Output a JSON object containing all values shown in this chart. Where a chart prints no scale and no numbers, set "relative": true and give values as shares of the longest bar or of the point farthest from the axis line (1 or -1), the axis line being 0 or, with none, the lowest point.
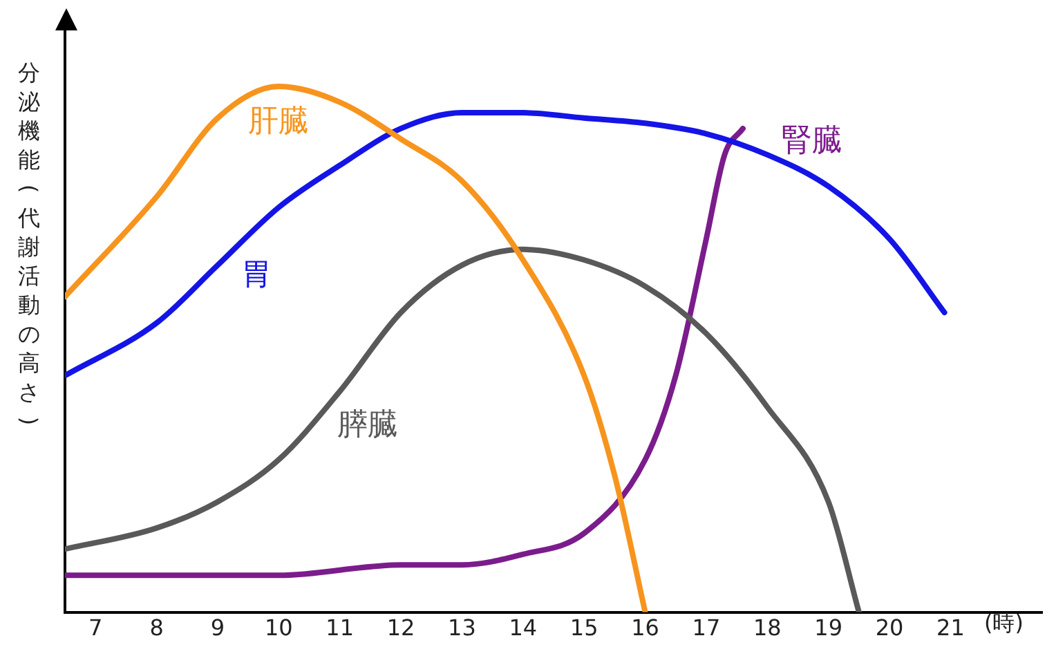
{
  "chart_data": {
    "type": "line",
    "relative": true,
    "ylabel": "分泌機能(代謝活動の高さ)",
    "xlabel": "(時)",
    "xlim": [
      6.5,
      22.5
    ],
    "xticks": [
      7,
      8,
      9,
      10,
      11,
      12,
      13,
      14,
      15,
      16,
      17,
      18,
      19,
      20,
      21
    ],
    "grid": false,
    "legend": false,
    "marker": "none",
    "line_style": "solid",
    "series": [
      {
        "name": "肝臓",
        "color": "#f7941d",
        "x": [
          6.5,
          8,
          9,
          10,
          11,
          12,
          13,
          14,
          15,
          15.5,
          16
        ],
        "values": [
          0.6,
          0.79,
          0.94,
          1.0,
          0.97,
          0.9,
          0.82,
          0.67,
          0.45,
          0.26,
          0
        ]
      },
      {
        "name": "胃",
        "color": "#1414e6",
        "x": [
          6.5,
          8,
          9,
          10,
          11,
          12,
          13,
          14,
          15,
          16,
          17,
          18,
          19,
          20,
          20.9
        ],
        "values": [
          0.45,
          0.55,
          0.66,
          0.77,
          0.85,
          0.92,
          0.95,
          0.95,
          0.94,
          0.93,
          0.91,
          0.87,
          0.81,
          0.71,
          0.57
        ]
      },
      {
        "name": "膵臓",
        "color": "#595959",
        "x": [
          6.5,
          8,
          9,
          10,
          11,
          12,
          13,
          14,
          15,
          16,
          17,
          18,
          19,
          19.5
        ],
        "values": [
          0.12,
          0.16,
          0.21,
          0.29,
          0.42,
          0.57,
          0.66,
          0.69,
          0.67,
          0.62,
          0.53,
          0.39,
          0.21,
          0
        ]
      },
      {
        "name": "腎臓",
        "color": "#7b1c8c",
        "x": [
          6.5,
          10,
          12,
          13,
          14,
          15,
          16,
          16.5,
          17,
          17.3,
          17.6
        ],
        "values": [
          0.07,
          0.07,
          0.09,
          0.09,
          0.11,
          0.15,
          0.29,
          0.45,
          0.71,
          0.87,
          0.92
        ]
      }
    ]
  }
}
